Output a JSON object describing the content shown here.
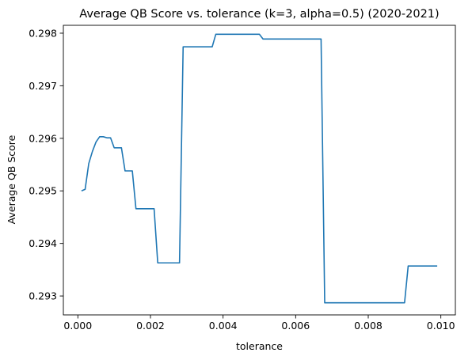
{
  "chart_data": {
    "type": "line",
    "title": "Average QB Score vs. tolerance (k=3, alpha=0.5) (2020-2021)",
    "xlabel": "tolerance",
    "ylabel": "Average QB Score",
    "xlim": [
      -0.0004,
      0.0104
    ],
    "ylim": [
      0.29264,
      0.29815
    ],
    "xticks": [
      0.0,
      0.002,
      0.004,
      0.006,
      0.008,
      0.01
    ],
    "xtick_labels": [
      "0.000",
      "0.002",
      "0.004",
      "0.006",
      "0.008",
      "0.010"
    ],
    "yticks": [
      0.293,
      0.294,
      0.295,
      0.296,
      0.297,
      0.298
    ],
    "ytick_labels": [
      "0.293",
      "0.294",
      "0.295",
      "0.296",
      "0.297",
      "0.298"
    ],
    "grid": false,
    "color": "#1f77b4",
    "series": [
      {
        "x": [
          0.0001,
          0.0002,
          0.0003,
          0.0004,
          0.0005,
          0.0006,
          0.0007,
          0.0008,
          0.0009,
          0.001,
          0.0011,
          0.0012,
          0.0013,
          0.0014,
          0.0015,
          0.0016,
          0.0017,
          0.0018,
          0.0019,
          0.002,
          0.0021,
          0.0022,
          0.0023,
          0.0024,
          0.0025,
          0.0026,
          0.0027,
          0.0028,
          0.0029,
          0.003,
          0.0031,
          0.0032,
          0.0033,
          0.0034,
          0.0035,
          0.0036,
          0.0037,
          0.0038,
          0.0039,
          0.004,
          0.0041,
          0.0042,
          0.0043,
          0.0044,
          0.0045,
          0.0046,
          0.0047,
          0.0048,
          0.0049,
          0.005,
          0.0051,
          0.0052,
          0.0053,
          0.0054,
          0.0055,
          0.0056,
          0.0057,
          0.0058,
          0.0059,
          0.006,
          0.0061,
          0.0062,
          0.0063,
          0.0064,
          0.0065,
          0.0066,
          0.0067,
          0.0068,
          0.0069,
          0.007,
          0.0071,
          0.0072,
          0.0073,
          0.0074,
          0.0075,
          0.0076,
          0.0077,
          0.0078,
          0.0079,
          0.008,
          0.0081,
          0.0082,
          0.0083,
          0.0084,
          0.0085,
          0.0086,
          0.0087,
          0.0088,
          0.0089,
          0.009,
          0.0091,
          0.0092,
          0.0093,
          0.0094,
          0.0095,
          0.0096,
          0.0097,
          0.0098,
          0.0099
        ],
        "y": [
          0.295,
          0.29503,
          0.29552,
          0.29575,
          0.29593,
          0.29603,
          0.29603,
          0.29601,
          0.29601,
          0.29582,
          0.29582,
          0.29582,
          0.29538,
          0.29538,
          0.29538,
          0.29466,
          0.29466,
          0.29466,
          0.29466,
          0.29466,
          0.29466,
          0.29363,
          0.29363,
          0.29363,
          0.29363,
          0.29363,
          0.29363,
          0.29363,
          0.29774,
          0.29774,
          0.29774,
          0.29774,
          0.29774,
          0.29774,
          0.29774,
          0.29774,
          0.29774,
          0.29798,
          0.29798,
          0.29798,
          0.29798,
          0.29798,
          0.29798,
          0.29798,
          0.29798,
          0.29798,
          0.29798,
          0.29798,
          0.29798,
          0.29798,
          0.29789,
          0.29789,
          0.29789,
          0.29789,
          0.29789,
          0.29789,
          0.29789,
          0.29789,
          0.29789,
          0.29789,
          0.29789,
          0.29789,
          0.29789,
          0.29789,
          0.29789,
          0.29789,
          0.29789,
          0.29287,
          0.29287,
          0.29287,
          0.29287,
          0.29287,
          0.29287,
          0.29287,
          0.29287,
          0.29287,
          0.29287,
          0.29287,
          0.29287,
          0.29287,
          0.29287,
          0.29287,
          0.29287,
          0.29287,
          0.29287,
          0.29287,
          0.29287,
          0.29287,
          0.29287,
          0.29287,
          0.29357,
          0.29357,
          0.29357,
          0.29357,
          0.29357,
          0.29357,
          0.29357,
          0.29357,
          0.29357
        ]
      }
    ]
  }
}
